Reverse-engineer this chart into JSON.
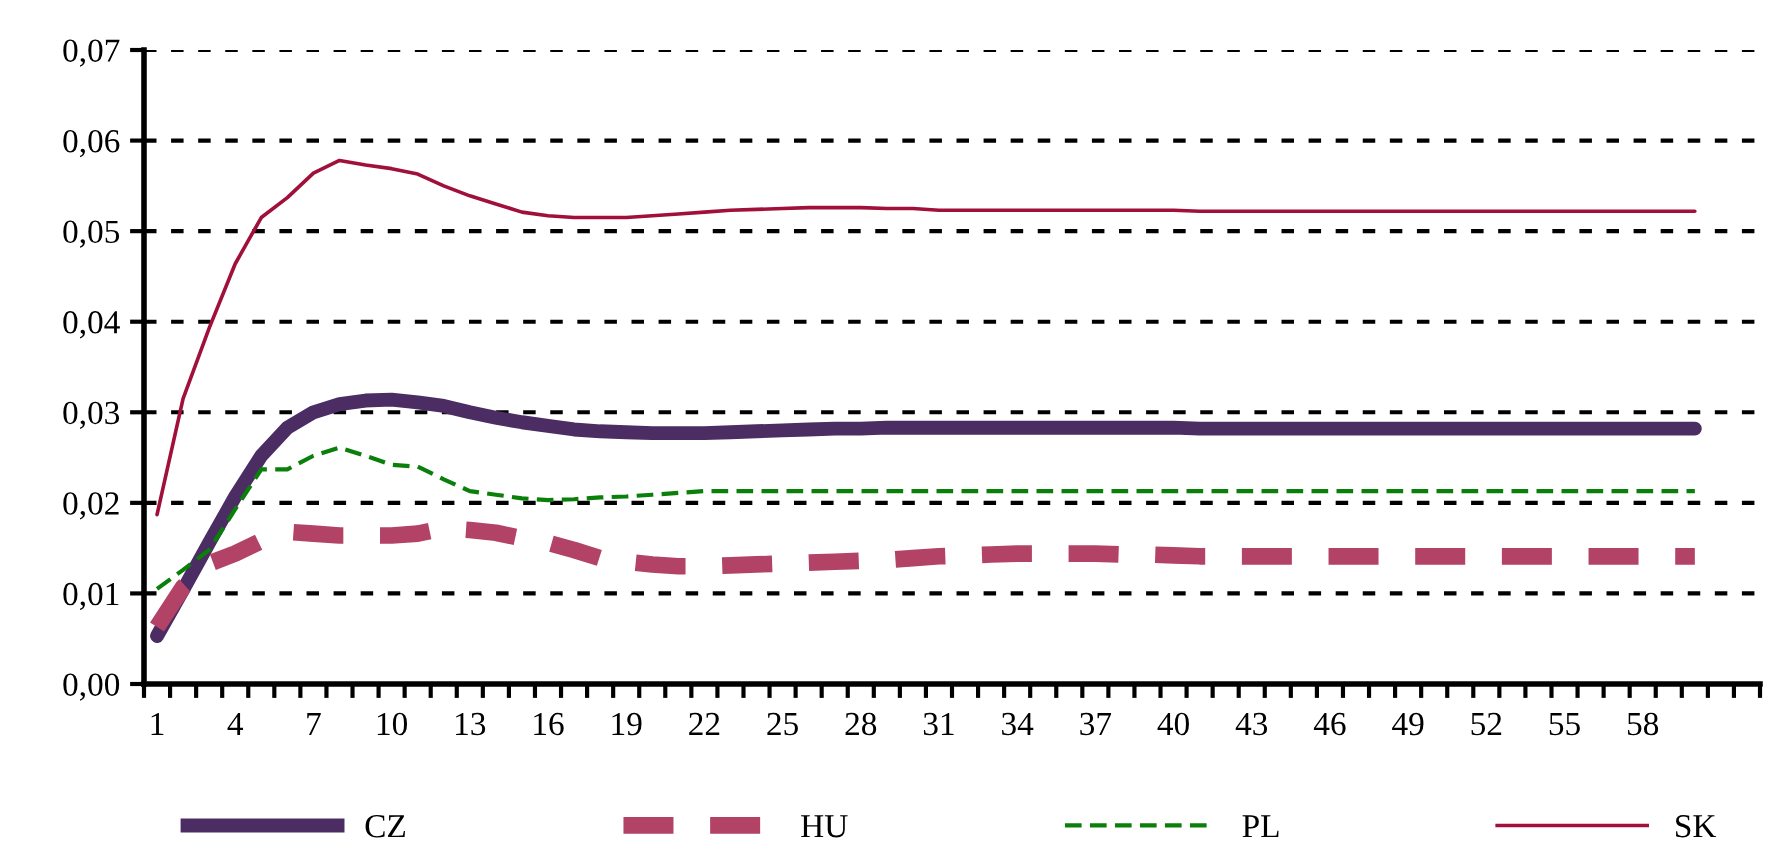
{
  "chart_data": {
    "type": "line",
    "categories": [
      "1",
      null,
      null,
      "4",
      null,
      null,
      "7",
      null,
      null,
      "10",
      null,
      null,
      "13",
      null,
      null,
      "16",
      null,
      null,
      "19",
      null,
      null,
      "22",
      null,
      null,
      "25",
      null,
      null,
      "28",
      null,
      null,
      "31",
      null,
      null,
      "34",
      null,
      null,
      "37",
      null,
      null,
      "40",
      null,
      null,
      "43",
      null,
      null,
      "46",
      null,
      null,
      "49",
      null,
      null,
      "52",
      null,
      null,
      "55",
      null,
      null,
      "58",
      null,
      null,
      null,
      null
    ],
    "series": [
      {
        "name": "CZ",
        "color": "#4b2c63",
        "line_style": "solid",
        "values": [
          0.0053,
          0.0104,
          0.0156,
          0.0207,
          0.0252,
          0.0283,
          0.03,
          0.0309,
          0.0313,
          0.0314,
          0.0311,
          0.0307,
          0.03,
          0.0294,
          0.0289,
          0.0285,
          0.0281,
          0.0279,
          0.0278,
          0.0277,
          0.0277,
          0.0277,
          0.0278,
          0.0279,
          0.028,
          0.0281,
          0.0282,
          0.0282,
          0.0283,
          0.0283,
          0.0283,
          0.0283,
          0.0283,
          0.0283,
          0.0283,
          0.0283,
          0.0283,
          0.0283,
          0.0283,
          0.0283,
          0.0282,
          0.0282,
          0.0282,
          0.0282,
          0.0282,
          0.0282,
          0.0282,
          0.0282,
          0.0282,
          0.0282,
          0.0282,
          0.0282,
          0.0282,
          0.0282,
          0.0282,
          0.0282,
          0.0282,
          0.0282,
          0.0282,
          0.0282,
          null,
          null
        ]
      },
      {
        "name": "HU",
        "color": "#b34366",
        "line_style": "dashed",
        "values": [
          0.0063,
          0.0107,
          0.0133,
          0.0144,
          0.0158,
          0.0168,
          0.0166,
          0.0164,
          0.0164,
          0.0164,
          0.0166,
          0.0172,
          0.017,
          0.0167,
          0.0161,
          0.0156,
          0.0148,
          0.0139,
          0.0135,
          0.0132,
          0.013,
          0.013,
          0.0131,
          0.0132,
          0.0133,
          0.0134,
          0.0135,
          0.0136,
          0.0137,
          0.0139,
          0.0141,
          0.0142,
          0.0143,
          0.0144,
          0.0144,
          0.0144,
          0.0144,
          0.0143,
          0.0143,
          0.0142,
          0.0141,
          0.0141,
          0.0141,
          0.0141,
          0.0141,
          0.0141,
          0.0141,
          0.0141,
          0.0141,
          0.0141,
          0.0141,
          0.0141,
          0.0141,
          0.0141,
          0.0141,
          0.0141,
          0.0141,
          0.0141,
          0.0141,
          0.0141,
          null,
          null
        ]
      },
      {
        "name": "PL",
        "color": "#0a7f0a",
        "line_style": "dashed",
        "values": [
          0.0105,
          0.0126,
          0.0148,
          0.0193,
          0.0237,
          0.0237,
          0.0252,
          0.0261,
          0.0252,
          0.0242,
          0.024,
          0.0226,
          0.0213,
          0.0209,
          0.0205,
          0.0203,
          0.0204,
          0.0206,
          0.0207,
          0.0209,
          0.0211,
          0.0213,
          0.0213,
          0.0213,
          0.0213,
          0.0213,
          0.0213,
          0.0213,
          0.0213,
          0.0213,
          0.0213,
          0.0213,
          0.0213,
          0.0213,
          0.0213,
          0.0213,
          0.0213,
          0.0213,
          0.0213,
          0.0213,
          0.0213,
          0.0213,
          0.0213,
          0.0213,
          0.0213,
          0.0213,
          0.0213,
          0.0213,
          0.0213,
          0.0213,
          0.0213,
          0.0213,
          0.0213,
          0.0213,
          0.0213,
          0.0213,
          0.0213,
          0.0213,
          0.0213,
          0.0213,
          null,
          null
        ]
      },
      {
        "name": "SK",
        "color": "#a0103a",
        "line_style": "solid",
        "values": [
          0.0187,
          0.0315,
          0.0393,
          0.0464,
          0.0515,
          0.0537,
          0.0564,
          0.0578,
          0.0573,
          0.0569,
          0.0563,
          0.055,
          0.0539,
          0.053,
          0.0521,
          0.0517,
          0.0515,
          0.0515,
          0.0515,
          0.0517,
          0.0519,
          0.0521,
          0.0523,
          0.0524,
          0.0525,
          0.0526,
          0.0526,
          0.0526,
          0.0525,
          0.0525,
          0.0523,
          0.0523,
          0.0523,
          0.0523,
          0.0523,
          0.0523,
          0.0523,
          0.0523,
          0.0523,
          0.0523,
          0.0522,
          0.0522,
          0.0522,
          0.0522,
          0.0522,
          0.0522,
          0.0522,
          0.0522,
          0.0522,
          0.0522,
          0.0522,
          0.0522,
          0.0522,
          0.0522,
          0.0522,
          0.0522,
          0.0522,
          0.0522,
          0.0522,
          0.0522,
          null,
          null
        ]
      }
    ],
    "ylim": [
      0,
      0.07
    ],
    "yticks": [
      {
        "value": 0,
        "label": "0,00"
      },
      {
        "value": 0.01,
        "label": "0,01"
      },
      {
        "value": 0.02,
        "label": "0,02"
      },
      {
        "value": 0.03,
        "label": "0,03"
      },
      {
        "value": 0.04,
        "label": "0,04"
      },
      {
        "value": 0.05,
        "label": "0,05"
      },
      {
        "value": 0.06,
        "label": "0,06"
      },
      {
        "value": 0.07,
        "label": "0,07"
      }
    ],
    "grid": "y",
    "legend": "bottom",
    "marker": "none"
  }
}
